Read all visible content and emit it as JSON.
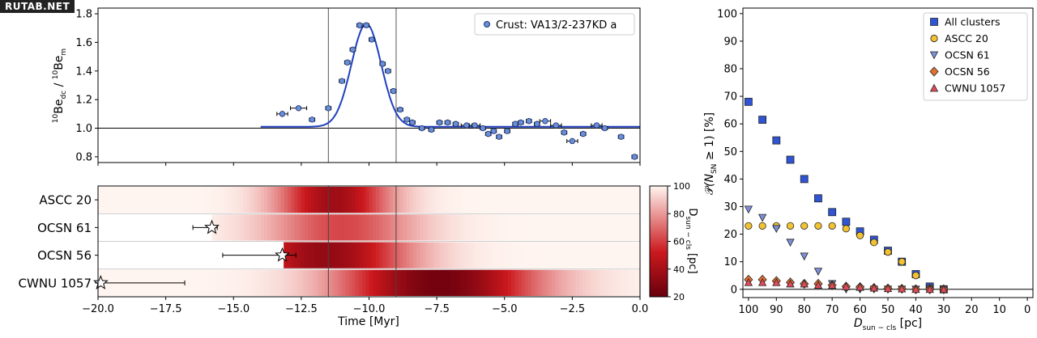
{
  "watermark": "RUTAB.NET",
  "chart_data": [
    {
      "type": "scatter",
      "panel": "top-left",
      "ylabel": "10Be_dc / 10Be_m",
      "ylabel_main": "Be",
      "ylabel_sub": "dc",
      "ylabel_sup": "10",
      "ylabel_main2": "Be",
      "ylabel_sub2": "m",
      "ylabel_sup2": "10",
      "xlim": [
        -20,
        0
      ],
      "ylim": [
        0.76,
        1.84
      ],
      "yticks": [
        "0.8",
        "1.0",
        "1.2",
        "1.4",
        "1.6",
        "1.8"
      ],
      "ytick_values": [
        0.8,
        1.0,
        1.2,
        1.4,
        1.6,
        1.8
      ],
      "hline": 1.0,
      "vlines": [
        -11.5,
        -9.0
      ],
      "legend": "Crust: VA13/2-237KD a",
      "legend_position": "top-right",
      "marker_color": "#6a8fd8",
      "fit_color": "#1f3fbf",
      "points": [
        {
          "x": -13.2,
          "y": 1.1,
          "xerr": 0.2
        },
        {
          "x": -12.6,
          "y": 1.14,
          "xerr": 0.3
        },
        {
          "x": -12.1,
          "y": 1.06,
          "xerr": 0.1
        },
        {
          "x": -11.5,
          "y": 1.14,
          "xerr": 0.1
        },
        {
          "x": -11.0,
          "y": 1.33,
          "xerr": 0.1
        },
        {
          "x": -10.8,
          "y": 1.46,
          "xerr": 0.1
        },
        {
          "x": -10.6,
          "y": 1.55,
          "xerr": 0.1
        },
        {
          "x": -10.35,
          "y": 1.72,
          "xerr": 0.1
        },
        {
          "x": -10.1,
          "y": 1.72,
          "xerr": 0.1
        },
        {
          "x": -9.9,
          "y": 1.62,
          "xerr": 0.1
        },
        {
          "x": -9.5,
          "y": 1.45,
          "xerr": 0.1
        },
        {
          "x": -9.3,
          "y": 1.4,
          "xerr": 0.1
        },
        {
          "x": -9.1,
          "y": 1.26,
          "xerr": 0.1
        },
        {
          "x": -8.85,
          "y": 1.13,
          "xerr": 0.1
        },
        {
          "x": -8.6,
          "y": 1.06,
          "xerr": 0.1
        },
        {
          "x": -8.4,
          "y": 1.04,
          "xerr": 0.1
        },
        {
          "x": -8.05,
          "y": 1.0,
          "xerr": 0.1
        },
        {
          "x": -7.7,
          "y": 0.99,
          "xerr": 0.1
        },
        {
          "x": -7.4,
          "y": 1.04,
          "xerr": 0.1
        },
        {
          "x": -7.1,
          "y": 1.04,
          "xerr": 0.1
        },
        {
          "x": -6.8,
          "y": 1.03,
          "xerr": 0.1
        },
        {
          "x": -6.4,
          "y": 1.02,
          "xerr": 0.2
        },
        {
          "x": -6.1,
          "y": 1.02,
          "xerr": 0.2
        },
        {
          "x": -5.8,
          "y": 1.0,
          "xerr": 0.1
        },
        {
          "x": -5.6,
          "y": 0.96,
          "xerr": 0.1
        },
        {
          "x": -5.4,
          "y": 0.98,
          "xerr": 0.1
        },
        {
          "x": -5.2,
          "y": 0.94,
          "xerr": 0.1
        },
        {
          "x": -4.9,
          "y": 0.98,
          "xerr": 0.1
        },
        {
          "x": -4.6,
          "y": 1.03,
          "xerr": 0.1
        },
        {
          "x": -4.4,
          "y": 1.04,
          "xerr": 0.1
        },
        {
          "x": -4.1,
          "y": 1.05,
          "xerr": 0.1
        },
        {
          "x": -3.8,
          "y": 1.03,
          "xerr": 0.1
        },
        {
          "x": -3.5,
          "y": 1.05,
          "xerr": 0.2
        },
        {
          "x": -3.1,
          "y": 1.02,
          "xerr": 0.2
        },
        {
          "x": -2.8,
          "y": 0.97,
          "xerr": 0.1
        },
        {
          "x": -2.5,
          "y": 0.91,
          "xerr": 0.2
        },
        {
          "x": -2.1,
          "y": 0.96,
          "xerr": 0.1
        },
        {
          "x": -1.6,
          "y": 1.02,
          "xerr": 0.2
        },
        {
          "x": -1.3,
          "y": 1.0,
          "xerr": 0.1
        },
        {
          "x": -0.7,
          "y": 0.94,
          "xerr": 0.1
        },
        {
          "x": -0.2,
          "y": 0.8,
          "xerr": 0.1
        }
      ],
      "fit": {
        "baseline": 1.01,
        "amplitude": 0.72,
        "center": -10.1,
        "sigma": 0.55,
        "x_start": -14.0,
        "x_end": 0.0
      }
    },
    {
      "type": "heatmap",
      "panel": "bottom-left",
      "xlabel": "Time [Myr]",
      "xlim": [
        -20,
        0
      ],
      "xticks": [
        "−20.0",
        "−17.5",
        "−15.0",
        "−12.5",
        "−10.0",
        "−7.5",
        "−5.0",
        "−2.5",
        "0.0"
      ],
      "xtick_values": [
        -20,
        -17.5,
        -15,
        -12.5,
        -10,
        -7.5,
        -5,
        -2.5,
        0
      ],
      "rows": [
        "ASCC 20",
        "OCSN 61",
        "OCSN 56",
        "CWNU 1057"
      ],
      "vlines": [
        -11.5,
        -9.0
      ],
      "colorbar": {
        "label": "D_sun−cls [pc]",
        "label_main": "D",
        "label_sub": "sun − cls",
        "label_unit": "[pc]",
        "ticks": [
          "100",
          "80",
          "60",
          "40",
          "20"
        ],
        "tick_values": [
          100,
          80,
          60,
          40,
          20
        ],
        "range": [
          20,
          100
        ],
        "color_low": "#67000d",
        "color_mid": "#cb181d",
        "color_high": "#fff5f0"
      },
      "distance_profiles": [
        {
          "row": "ASCC 20",
          "min_distance": 38,
          "t_min": -11.3,
          "width": 1.5,
          "start": -20.0
        },
        {
          "row": "OCSN 61",
          "min_distance": 62,
          "t_min": -11.0,
          "width": 2.0,
          "start": -15.8
        },
        {
          "row": "OCSN 56",
          "min_distance": 34,
          "t_min": -11.6,
          "width": 2.2,
          "start": -13.15
        },
        {
          "row": "CWNU 1057",
          "min_distance": 24,
          "t_min": -7.4,
          "width": 2.6,
          "start": -20.0
        }
      ],
      "stars": [
        {
          "row": "OCSN 61",
          "x": -15.8,
          "xerr_low": 0.7,
          "xerr_high": 0.2
        },
        {
          "row": "OCSN 56",
          "x": -13.2,
          "xerr_low": 2.2,
          "xerr_high": 0.5
        },
        {
          "row": "CWNU 1057",
          "x": -19.9,
          "xerr_low": 0.0,
          "xerr_high": 3.1
        }
      ]
    },
    {
      "type": "scatter",
      "panel": "right",
      "xlabel": "D_sun−cls [pc]",
      "xlabel_main": "D",
      "xlabel_sub": "sun − cls",
      "xlabel_unit": "[pc]",
      "ylabel": "P(N_SN ≥ 1) [%]",
      "ylabel_p": "𝒫",
      "ylabel_open": "(N",
      "ylabel_sub": "SN",
      "ylabel_rest": " ≥ 1) [%]",
      "xlim": [
        102,
        -2
      ],
      "ylim": [
        -3,
        102
      ],
      "xticks": [
        "100",
        "90",
        "80",
        "70",
        "60",
        "50",
        "40",
        "30",
        "20",
        "10",
        "0"
      ],
      "xtick_values": [
        100,
        90,
        80,
        70,
        60,
        50,
        40,
        30,
        20,
        10,
        0
      ],
      "yticks": [
        "0",
        "10",
        "20",
        "30",
        "40",
        "50",
        "60",
        "70",
        "80",
        "90",
        "100"
      ],
      "ytick_values": [
        0,
        10,
        20,
        30,
        40,
        50,
        60,
        70,
        80,
        90,
        100
      ],
      "hline": 0,
      "legend_position": "top-right",
      "series": [
        {
          "name": "All clusters",
          "marker": "square",
          "color": "#2f55d4",
          "x": [
            100,
            95,
            90,
            85,
            80,
            75,
            70,
            65,
            60,
            55,
            50,
            45,
            40,
            35,
            30
          ],
          "y": [
            68,
            61.5,
            54,
            47,
            40,
            33,
            28,
            24.5,
            21,
            18,
            14,
            10,
            5.5,
            1,
            0
          ]
        },
        {
          "name": "ASCC 20",
          "marker": "circle",
          "color": "#f2c232",
          "x": [
            100,
            95,
            90,
            85,
            80,
            75,
            70,
            65,
            60,
            55,
            50,
            45,
            40,
            35,
            30
          ],
          "y": [
            23,
            23,
            23,
            23,
            23,
            23,
            23,
            22,
            19.5,
            17,
            13.5,
            10,
            5,
            0.5,
            0
          ]
        },
        {
          "name": "OCSN 61",
          "marker": "triangle-down",
          "color": "#7d8fd8",
          "x": [
            100,
            95,
            90,
            85,
            80,
            75,
            70,
            65,
            60,
            55,
            50,
            45,
            40,
            35,
            30
          ],
          "y": [
            29,
            26,
            22,
            17,
            12,
            6.5,
            2,
            0,
            0,
            0,
            0,
            0,
            0,
            0,
            0
          ]
        },
        {
          "name": "OCSN 56",
          "marker": "diamond",
          "color": "#e3702d",
          "x": [
            100,
            95,
            90,
            85,
            80,
            75,
            70,
            65,
            60,
            55,
            50,
            45,
            40,
            35,
            30
          ],
          "y": [
            3.5,
            3.5,
            3,
            2.5,
            2,
            2,
            1.5,
            1,
            0.8,
            0.5,
            0.3,
            0.2,
            0,
            0,
            0
          ]
        },
        {
          "name": "CWNU 1057",
          "marker": "triangle-up",
          "color": "#e04b5b",
          "x": [
            100,
            95,
            90,
            85,
            80,
            75,
            70,
            65,
            60,
            55,
            50,
            45,
            40,
            35,
            30
          ],
          "y": [
            2.5,
            2.5,
            2.5,
            2,
            2,
            1.5,
            1.5,
            1,
            0.8,
            0.5,
            0.3,
            0.2,
            0,
            0,
            0
          ]
        }
      ]
    }
  ]
}
